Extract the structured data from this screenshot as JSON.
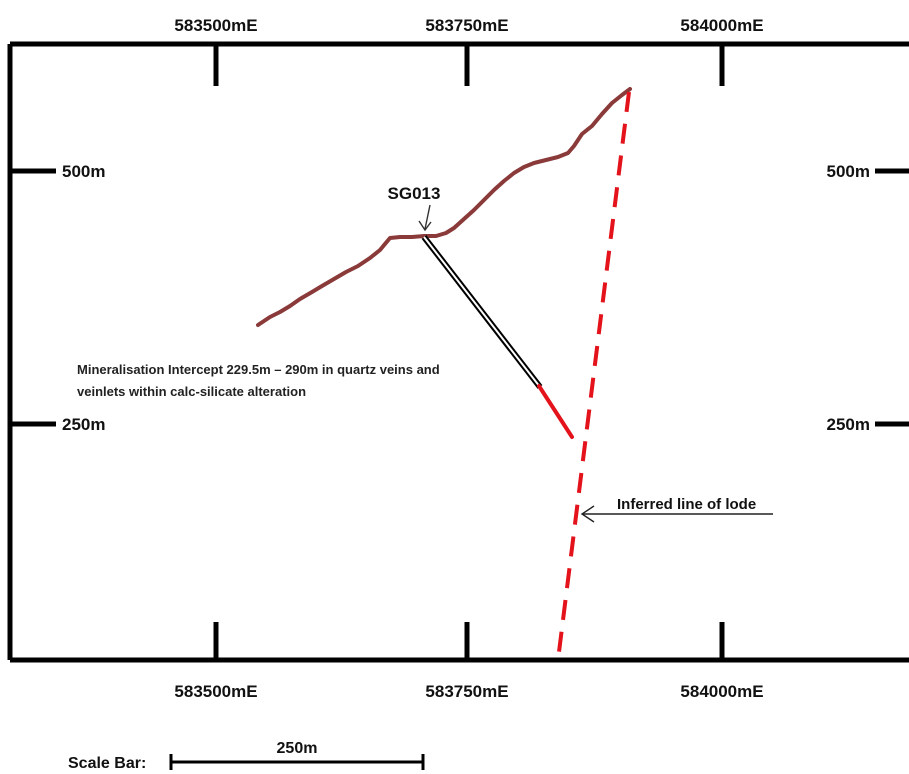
{
  "section": {
    "easting_labels_top": [
      "583500mE",
      "583750mE",
      "584000mE"
    ],
    "easting_labels_bottom": [
      "583500mE",
      "583750mE",
      "584000mE"
    ],
    "rl_labels_left": [
      "500m",
      "250m"
    ],
    "rl_labels_right": [
      "500m",
      "250m"
    ],
    "colors": {
      "frame": "#000000",
      "topography": "#8b3a3a",
      "intercept": "#e3121b",
      "lode": "#e3121b",
      "drillhole": "#000000"
    }
  },
  "drillhole": {
    "name": "SG013",
    "intercept_note_line1": "Mineralisation Intercept 229.5m – 290m in quartz veins and",
    "intercept_note_line2": "veinlets within calc-silicate alteration"
  },
  "lode": {
    "label": "Inferred line of lode"
  },
  "scale_bar": {
    "label": "Scale Bar:",
    "length_label": "250m"
  }
}
